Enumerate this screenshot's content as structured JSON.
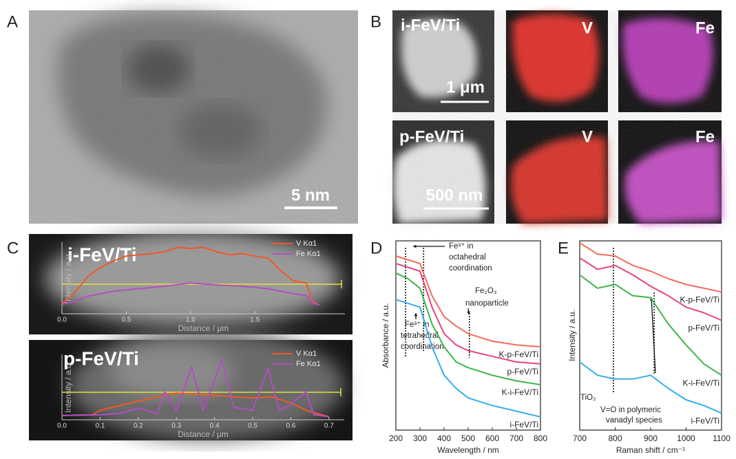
{
  "panel_labels": [
    "A",
    "B",
    "C",
    "D",
    "E"
  ],
  "images": {
    "a": {
      "scale_bar": "5 nm"
    },
    "b": {
      "rows": [
        {
          "sample": "i-FeV/Ti",
          "maps": [
            "V",
            "Fe"
          ],
          "scale_bar": "1 μm"
        },
        {
          "sample": "p-FeV/Ti",
          "maps": [
            "V",
            "Fe"
          ],
          "scale_bar": "500 nm"
        }
      ]
    }
  },
  "chart_data": [
    {
      "type": "line",
      "title": "i-FeV/Ti",
      "x_label": "Distance / μm",
      "y_label": "Intensity / a.u.",
      "xlim": [
        0,
        2.2
      ],
      "ylim": [
        -14,
        100
      ],
      "xticks": [
        {
          "value": 0,
          "label": "0.0"
        },
        0.5,
        {
          "value": 1,
          "label": "1.0"
        },
        1.5
      ],
      "series": [
        {
          "name": "V Kα1",
          "color": "#f0582a",
          "x": [
            0,
            0.1,
            0.2,
            0.3,
            0.4,
            0.5,
            0.6,
            0.7,
            0.8,
            0.9,
            1.0,
            1.1,
            1.2,
            1.3,
            1.4,
            1.5,
            1.6,
            1.7,
            1.8,
            1.9,
            1.95,
            2.0
          ],
          "values": [
            2,
            20,
            45,
            60,
            70,
            78,
            80,
            82,
            85,
            92,
            90,
            92,
            85,
            80,
            82,
            78,
            75,
            55,
            38,
            35,
            5,
            0
          ]
        },
        {
          "name": "Fe Kα1",
          "color": "#b24ec4",
          "x": [
            0,
            0.1,
            0.2,
            0.3,
            0.4,
            0.6,
            0.8,
            1.0,
            1.2,
            1.4,
            1.6,
            1.8,
            1.9,
            1.95,
            2.0
          ],
          "values": [
            1,
            6,
            14,
            18,
            22,
            26,
            30,
            35,
            32,
            30,
            26,
            18,
            15,
            3,
            0
          ]
        }
      ]
    },
    {
      "type": "line",
      "title": "p-FeV/Ti",
      "x_label": "Distance / μm",
      "y_label": "Intensity / a.u.",
      "xlim": [
        0,
        0.74
      ],
      "ylim": [
        -5,
        100
      ],
      "xticks": [
        {
          "value": 0,
          "label": "0.0"
        },
        0.1,
        0.2,
        0.3,
        0.4,
        0.5,
        0.6,
        0.7
      ],
      "series": [
        {
          "name": "V Kα1",
          "color": "#f0582a",
          "x": [
            0,
            0.08,
            0.1,
            0.2,
            0.3,
            0.35,
            0.4,
            0.5,
            0.55,
            0.6,
            0.65,
            0.7
          ],
          "values": [
            2,
            3,
            10,
            25,
            38,
            36,
            34,
            30,
            32,
            22,
            8,
            0
          ]
        },
        {
          "name": "Fe Kα1",
          "color": "#b24ec4",
          "x": [
            0,
            0.1,
            0.15,
            0.2,
            0.25,
            0.27,
            0.3,
            0.34,
            0.37,
            0.42,
            0.45,
            0.5,
            0.54,
            0.57,
            0.6,
            0.64,
            0.66,
            0.7
          ],
          "values": [
            2,
            3,
            5,
            14,
            5,
            40,
            10,
            80,
            10,
            92,
            15,
            10,
            78,
            10,
            20,
            40,
            3,
            0
          ]
        }
      ]
    },
    {
      "type": "line",
      "x_label": "Wavelength / nm",
      "y_label": "Absorbance / a.u.",
      "xlim": [
        200,
        800
      ],
      "ylim": [
        0,
        100
      ],
      "xticks": [
        200,
        300,
        400,
        500,
        600,
        700,
        800
      ],
      "x": [
        200,
        250,
        300,
        350,
        400,
        450,
        500,
        600,
        700,
        800
      ],
      "series": [
        {
          "name": "K-p-FeV/Ti",
          "color": "#f26a5a",
          "values": [
            92,
            90,
            88,
            71,
            60,
            55,
            51,
            47,
            45,
            44
          ]
        },
        {
          "name": "p-FeV/Ti",
          "color": "#e8437a",
          "values": [
            88,
            86,
            84,
            65,
            51,
            45,
            42,
            39,
            36,
            35
          ]
        },
        {
          "name": "K-i-FeV/Ti",
          "color": "#3cb44a",
          "values": [
            83,
            80,
            75,
            56,
            44,
            36,
            33,
            29,
            26,
            24
          ]
        },
        {
          "name": "i-FeV/Ti",
          "color": "#35aee6",
          "values": [
            69,
            67,
            65,
            44,
            29,
            22,
            17,
            13,
            10,
            7
          ]
        }
      ],
      "vlines": [
        240,
        315,
        505
      ],
      "annotations": [
        [
          "Fe³⁺ in",
          "octahedral",
          "coordination"
        ],
        [
          "Fe₂O₃",
          "nanoparticle"
        ],
        [
          "Fe³⁺ in",
          "tetrahedral",
          "coordination"
        ]
      ]
    },
    {
      "type": "line",
      "x_label": "Raman shift / cm⁻¹",
      "y_label": "Intensity / a.u.",
      "xlim": [
        700,
        1100
      ],
      "ylim": [
        0,
        100
      ],
      "xticks": [
        700,
        800,
        900,
        1000,
        1100
      ],
      "x": [
        700,
        750,
        800,
        850,
        900,
        950,
        1000,
        1050,
        1100
      ],
      "series": [
        {
          "name": "K-p-FeV/Ti",
          "color": "#f26a5a",
          "values": [
            99,
            93,
            92,
            87,
            84,
            80,
            77,
            75,
            73
          ]
        },
        {
          "name": "p-FeV/Ti",
          "color": "#e8437a",
          "values": [
            91,
            85,
            87,
            82,
            76,
            71,
            65,
            62,
            58
          ]
        },
        {
          "name": "K-i-FeV/Ti",
          "color": "#3cb44a",
          "values": [
            82,
            75,
            77,
            71,
            70,
            56,
            45,
            35,
            29
          ]
        },
        {
          "name": "i-FeV/Ti",
          "color": "#35aee6",
          "values": [
            36,
            29,
            27,
            27,
            29,
            22,
            16,
            13,
            9
          ]
        }
      ],
      "vlines": [
        795,
        910
      ],
      "annotations": [
        [
          "TiO₂"
        ],
        [
          "V=O in polymeric",
          "vanadyl species"
        ]
      ]
    }
  ]
}
